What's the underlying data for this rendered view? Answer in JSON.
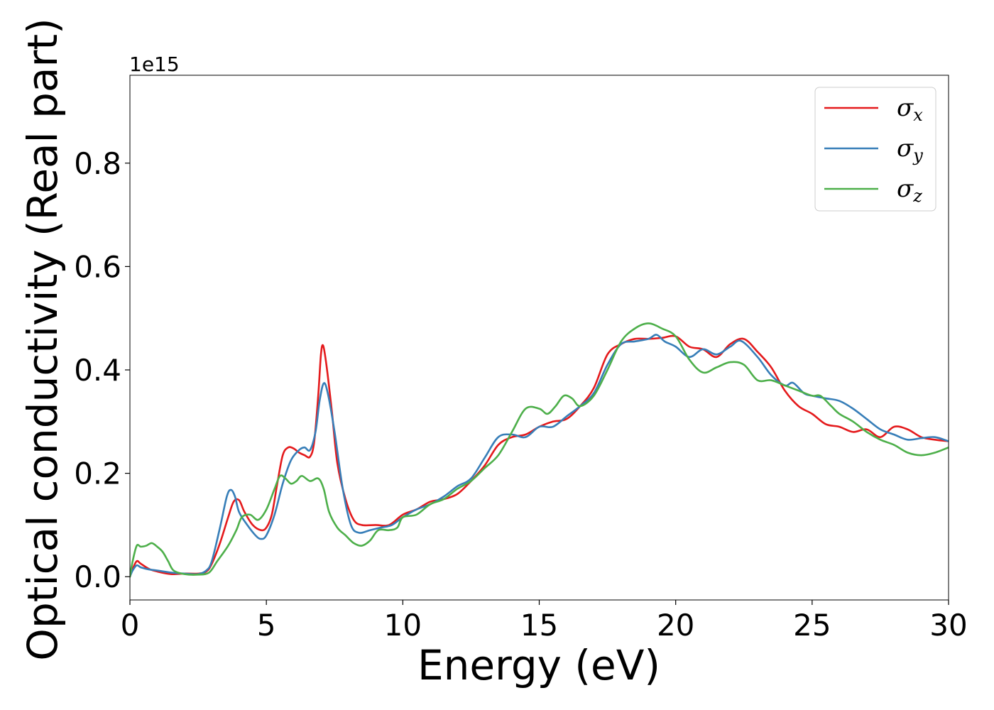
{
  "chart_data": {
    "type": "line",
    "xlabel": "Energy (eV)",
    "ylabel": "Optical conductivity (Real part)",
    "y_offset_text": "1e15",
    "xlim": [
      0,
      30
    ],
    "ylim": [
      -0.045,
      0.97
    ],
    "x_ticks": [
      0,
      5,
      10,
      15,
      20,
      25,
      30
    ],
    "y_ticks": [
      0.0,
      0.2,
      0.4,
      0.6,
      0.8
    ],
    "y_tick_labels": [
      "0.0",
      "0.2",
      "0.4",
      "0.6",
      "0.8"
    ],
    "grid": false,
    "legend_position": "top-right",
    "series": [
      {
        "name": "σx",
        "symbol": "σ",
        "sub": "x",
        "color": "#e41a1c",
        "points": [
          [
            0,
            0.0
          ],
          [
            0.1,
            0.015
          ],
          [
            0.25,
            0.03
          ],
          [
            0.4,
            0.025
          ],
          [
            0.7,
            0.015
          ],
          [
            1.0,
            0.01
          ],
          [
            1.5,
            0.005
          ],
          [
            2.0,
            0.006
          ],
          [
            2.5,
            0.006
          ],
          [
            2.8,
            0.01
          ],
          [
            3.0,
            0.025
          ],
          [
            3.3,
            0.065
          ],
          [
            3.6,
            0.115
          ],
          [
            3.8,
            0.145
          ],
          [
            4.0,
            0.148
          ],
          [
            4.2,
            0.125
          ],
          [
            4.5,
            0.1
          ],
          [
            4.8,
            0.09
          ],
          [
            5.0,
            0.095
          ],
          [
            5.2,
            0.12
          ],
          [
            5.4,
            0.18
          ],
          [
            5.6,
            0.235
          ],
          [
            5.8,
            0.25
          ],
          [
            6.0,
            0.248
          ],
          [
            6.2,
            0.24
          ],
          [
            6.4,
            0.235
          ],
          [
            6.6,
            0.232
          ],
          [
            6.75,
            0.26
          ],
          [
            6.9,
            0.35
          ],
          [
            7.0,
            0.43
          ],
          [
            7.08,
            0.447
          ],
          [
            7.2,
            0.41
          ],
          [
            7.4,
            0.32
          ],
          [
            7.6,
            0.22
          ],
          [
            7.9,
            0.15
          ],
          [
            8.2,
            0.11
          ],
          [
            8.5,
            0.1
          ],
          [
            9.0,
            0.1
          ],
          [
            9.5,
            0.1
          ],
          [
            10.0,
            0.12
          ],
          [
            10.5,
            0.13
          ],
          [
            11.0,
            0.145
          ],
          [
            11.5,
            0.15
          ],
          [
            12.0,
            0.16
          ],
          [
            12.5,
            0.185
          ],
          [
            13.0,
            0.215
          ],
          [
            13.5,
            0.255
          ],
          [
            14.0,
            0.27
          ],
          [
            14.5,
            0.275
          ],
          [
            15.0,
            0.29
          ],
          [
            15.5,
            0.3
          ],
          [
            16.0,
            0.305
          ],
          [
            16.5,
            0.33
          ],
          [
            17.0,
            0.365
          ],
          [
            17.5,
            0.43
          ],
          [
            18.0,
            0.45
          ],
          [
            18.5,
            0.46
          ],
          [
            19.0,
            0.46
          ],
          [
            19.5,
            0.462
          ],
          [
            20.0,
            0.465
          ],
          [
            20.5,
            0.445
          ],
          [
            21.0,
            0.44
          ],
          [
            21.5,
            0.425
          ],
          [
            22.0,
            0.45
          ],
          [
            22.5,
            0.46
          ],
          [
            23.0,
            0.435
          ],
          [
            23.5,
            0.405
          ],
          [
            24.0,
            0.36
          ],
          [
            24.5,
            0.33
          ],
          [
            25.0,
            0.315
          ],
          [
            25.5,
            0.295
          ],
          [
            26.0,
            0.29
          ],
          [
            26.5,
            0.28
          ],
          [
            27.0,
            0.285
          ],
          [
            27.5,
            0.27
          ],
          [
            28.0,
            0.29
          ],
          [
            28.5,
            0.285
          ],
          [
            29.0,
            0.27
          ],
          [
            29.5,
            0.265
          ],
          [
            30.0,
            0.262
          ]
        ]
      },
      {
        "name": "σy",
        "symbol": "σ",
        "sub": "y",
        "color": "#377eb8",
        "points": [
          [
            0,
            0.0
          ],
          [
            0.1,
            0.012
          ],
          [
            0.25,
            0.022
          ],
          [
            0.4,
            0.018
          ],
          [
            0.7,
            0.014
          ],
          [
            1.0,
            0.012
          ],
          [
            1.5,
            0.008
          ],
          [
            2.0,
            0.006
          ],
          [
            2.5,
            0.005
          ],
          [
            2.8,
            0.012
          ],
          [
            3.0,
            0.03
          ],
          [
            3.3,
            0.095
          ],
          [
            3.55,
            0.155
          ],
          [
            3.7,
            0.168
          ],
          [
            3.85,
            0.155
          ],
          [
            4.0,
            0.125
          ],
          [
            4.3,
            0.1
          ],
          [
            4.6,
            0.08
          ],
          [
            4.8,
            0.073
          ],
          [
            5.0,
            0.08
          ],
          [
            5.3,
            0.12
          ],
          [
            5.6,
            0.18
          ],
          [
            5.9,
            0.225
          ],
          [
            6.2,
            0.245
          ],
          [
            6.4,
            0.25
          ],
          [
            6.6,
            0.245
          ],
          [
            6.8,
            0.28
          ],
          [
            6.95,
            0.34
          ],
          [
            7.1,
            0.374
          ],
          [
            7.25,
            0.355
          ],
          [
            7.5,
            0.28
          ],
          [
            7.8,
            0.17
          ],
          [
            8.1,
            0.1
          ],
          [
            8.4,
            0.085
          ],
          [
            8.8,
            0.09
          ],
          [
            9.2,
            0.095
          ],
          [
            9.6,
            0.1
          ],
          [
            10.0,
            0.115
          ],
          [
            10.5,
            0.13
          ],
          [
            11.0,
            0.14
          ],
          [
            11.5,
            0.155
          ],
          [
            12.0,
            0.175
          ],
          [
            12.5,
            0.19
          ],
          [
            13.0,
            0.23
          ],
          [
            13.5,
            0.27
          ],
          [
            14.0,
            0.275
          ],
          [
            14.5,
            0.27
          ],
          [
            15.0,
            0.29
          ],
          [
            15.5,
            0.29
          ],
          [
            16.0,
            0.31
          ],
          [
            16.5,
            0.33
          ],
          [
            17.0,
            0.355
          ],
          [
            17.5,
            0.41
          ],
          [
            18.0,
            0.45
          ],
          [
            18.5,
            0.455
          ],
          [
            19.0,
            0.46
          ],
          [
            19.3,
            0.468
          ],
          [
            19.6,
            0.455
          ],
          [
            20.0,
            0.445
          ],
          [
            20.5,
            0.425
          ],
          [
            21.0,
            0.44
          ],
          [
            21.5,
            0.43
          ],
          [
            22.0,
            0.445
          ],
          [
            22.4,
            0.456
          ],
          [
            23.0,
            0.425
          ],
          [
            23.5,
            0.39
          ],
          [
            24.0,
            0.37
          ],
          [
            24.3,
            0.375
          ],
          [
            24.7,
            0.355
          ],
          [
            25.0,
            0.35
          ],
          [
            25.5,
            0.345
          ],
          [
            26.0,
            0.34
          ],
          [
            26.5,
            0.325
          ],
          [
            27.0,
            0.305
          ],
          [
            27.5,
            0.285
          ],
          [
            28.0,
            0.275
          ],
          [
            28.5,
            0.265
          ],
          [
            29.0,
            0.268
          ],
          [
            29.5,
            0.27
          ],
          [
            30.0,
            0.262
          ]
        ]
      },
      {
        "name": "σz",
        "symbol": "σ",
        "sub": "z",
        "color": "#4daf4a",
        "points": [
          [
            0,
            0.0
          ],
          [
            0.1,
            0.03
          ],
          [
            0.25,
            0.06
          ],
          [
            0.4,
            0.058
          ],
          [
            0.6,
            0.06
          ],
          [
            0.8,
            0.065
          ],
          [
            1.0,
            0.058
          ],
          [
            1.2,
            0.048
          ],
          [
            1.4,
            0.03
          ],
          [
            1.6,
            0.012
          ],
          [
            2.0,
            0.005
          ],
          [
            2.5,
            0.004
          ],
          [
            2.9,
            0.008
          ],
          [
            3.2,
            0.03
          ],
          [
            3.6,
            0.06
          ],
          [
            3.9,
            0.09
          ],
          [
            4.1,
            0.115
          ],
          [
            4.4,
            0.12
          ],
          [
            4.7,
            0.11
          ],
          [
            5.0,
            0.13
          ],
          [
            5.3,
            0.17
          ],
          [
            5.5,
            0.195
          ],
          [
            5.7,
            0.19
          ],
          [
            5.9,
            0.18
          ],
          [
            6.1,
            0.185
          ],
          [
            6.3,
            0.195
          ],
          [
            6.6,
            0.185
          ],
          [
            6.9,
            0.19
          ],
          [
            7.1,
            0.17
          ],
          [
            7.3,
            0.125
          ],
          [
            7.6,
            0.095
          ],
          [
            7.9,
            0.08
          ],
          [
            8.2,
            0.065
          ],
          [
            8.5,
            0.06
          ],
          [
            8.8,
            0.07
          ],
          [
            9.1,
            0.09
          ],
          [
            9.5,
            0.09
          ],
          [
            9.8,
            0.095
          ],
          [
            10.0,
            0.115
          ],
          [
            10.5,
            0.12
          ],
          [
            11.0,
            0.14
          ],
          [
            11.5,
            0.15
          ],
          [
            12.0,
            0.17
          ],
          [
            12.5,
            0.185
          ],
          [
            13.0,
            0.21
          ],
          [
            13.5,
            0.235
          ],
          [
            14.0,
            0.28
          ],
          [
            14.5,
            0.325
          ],
          [
            15.0,
            0.325
          ],
          [
            15.3,
            0.315
          ],
          [
            15.6,
            0.33
          ],
          [
            15.9,
            0.35
          ],
          [
            16.2,
            0.345
          ],
          [
            16.5,
            0.33
          ],
          [
            17.0,
            0.35
          ],
          [
            17.5,
            0.4
          ],
          [
            18.0,
            0.455
          ],
          [
            18.5,
            0.48
          ],
          [
            19.0,
            0.49
          ],
          [
            19.5,
            0.48
          ],
          [
            20.0,
            0.465
          ],
          [
            20.5,
            0.42
          ],
          [
            21.0,
            0.395
          ],
          [
            21.5,
            0.405
          ],
          [
            22.0,
            0.415
          ],
          [
            22.5,
            0.41
          ],
          [
            23.0,
            0.38
          ],
          [
            23.5,
            0.38
          ],
          [
            24.0,
            0.37
          ],
          [
            24.5,
            0.36
          ],
          [
            25.0,
            0.35
          ],
          [
            25.3,
            0.35
          ],
          [
            25.7,
            0.33
          ],
          [
            26.0,
            0.315
          ],
          [
            26.5,
            0.3
          ],
          [
            27.0,
            0.28
          ],
          [
            27.5,
            0.265
          ],
          [
            28.0,
            0.255
          ],
          [
            28.5,
            0.24
          ],
          [
            29.0,
            0.235
          ],
          [
            29.5,
            0.24
          ],
          [
            30.0,
            0.25
          ]
        ]
      }
    ]
  }
}
